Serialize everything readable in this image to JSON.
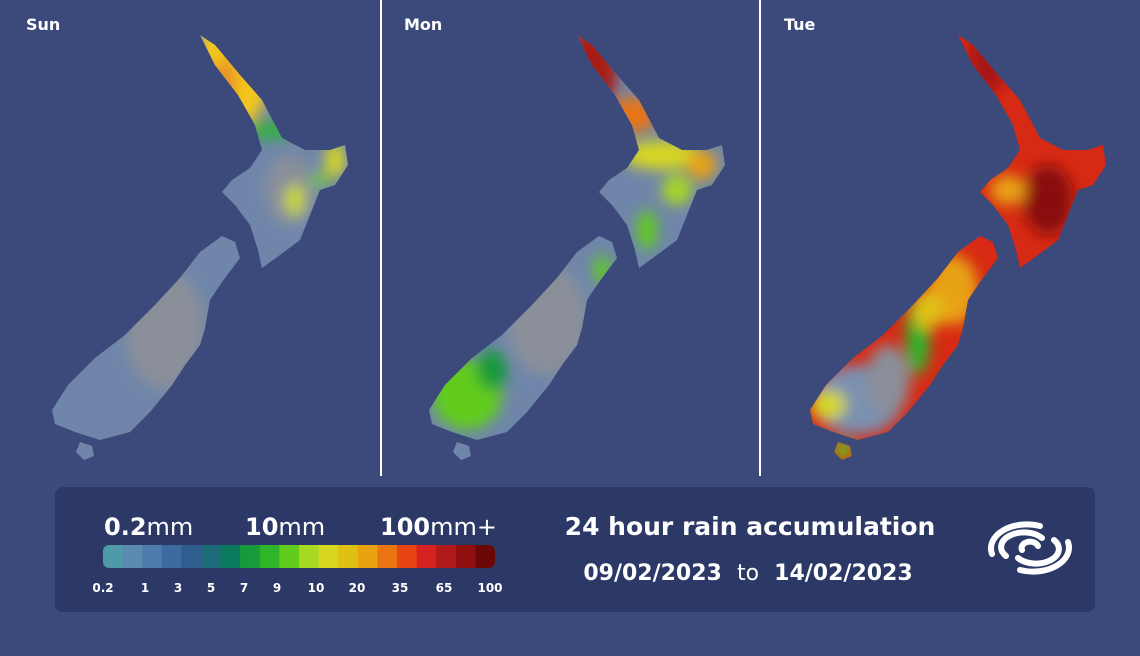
{
  "panels": [
    {
      "label": "Sun"
    },
    {
      "label": "Mon"
    },
    {
      "label": "Tue"
    }
  ],
  "legend": {
    "headings": [
      {
        "number": "0.2",
        "unit": "mm"
      },
      {
        "number": "10",
        "unit": "mm"
      },
      {
        "number": "100",
        "unit": "mm+"
      }
    ],
    "colors": [
      "#4e9aa6",
      "#5a8cb2",
      "#4d7bab",
      "#3f6a9f",
      "#2f5e8e",
      "#1d6a78",
      "#0b7a5c",
      "#169a3a",
      "#2eb62a",
      "#62cc1c",
      "#a8d822",
      "#d6d620",
      "#e0c012",
      "#e8a212",
      "#e87412",
      "#e84414",
      "#d82222",
      "#b01a1a",
      "#901010",
      "#6a0808"
    ],
    "ticks": [
      "0.2",
      "1",
      "3",
      "5",
      "7",
      "9",
      "10",
      "20",
      "35",
      "65",
      "100"
    ]
  },
  "title": "24 hour rain accumulation",
  "date_range": {
    "start": "09/02/2023",
    "separator": "to",
    "end": "14/02/2023"
  }
}
